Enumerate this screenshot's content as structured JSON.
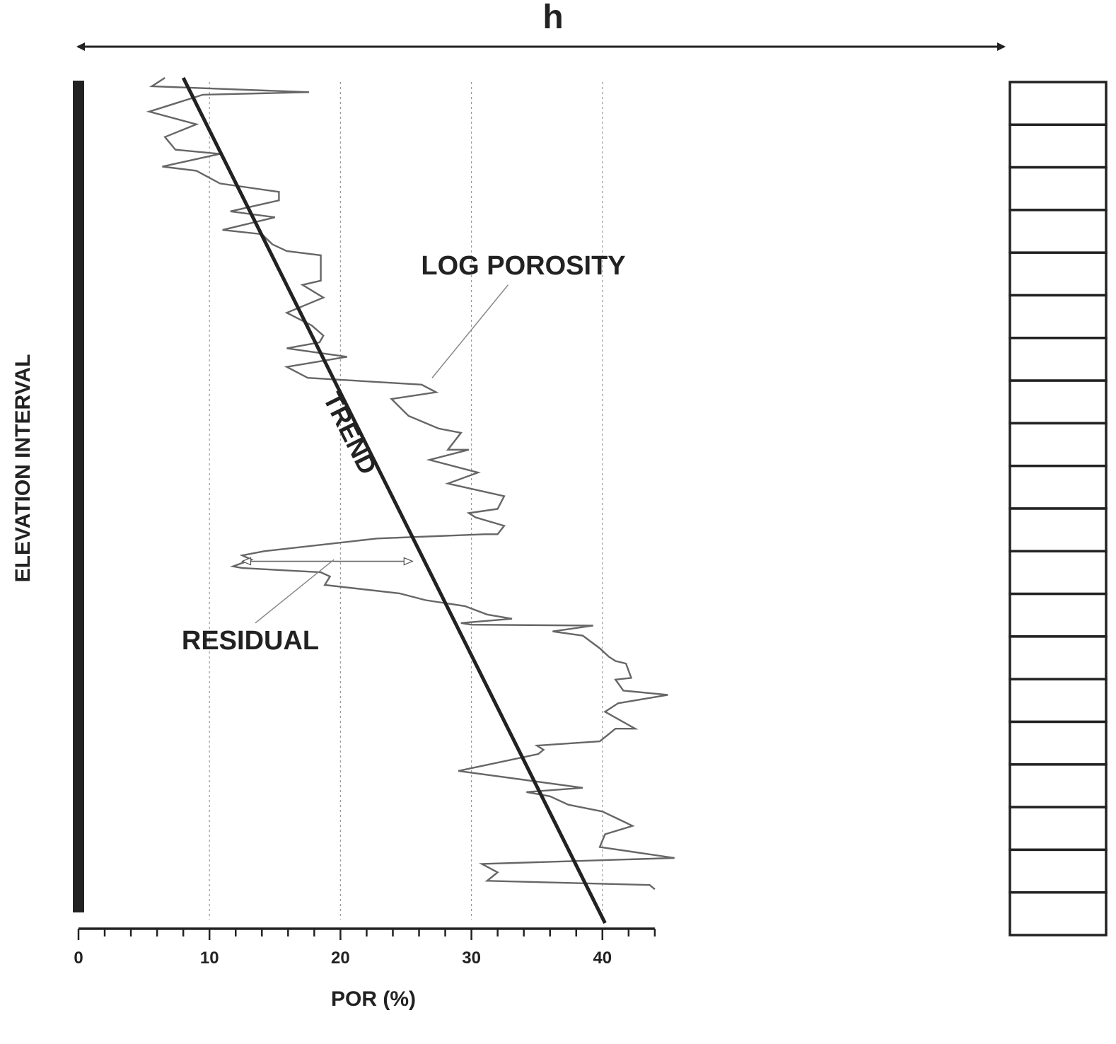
{
  "header_label": "h",
  "chart_data": {
    "type": "line",
    "xlabel": "POR (%)",
    "ylabel": "ELEVATION INTERVAL",
    "xlim": [
      0,
      44
    ],
    "xticks": [
      0,
      10,
      20,
      30,
      40
    ],
    "x_tick_labels": [
      "0",
      "10",
      "20",
      "30",
      "40"
    ],
    "grid_x": [
      10,
      20,
      30,
      40
    ],
    "grid": true,
    "series": [
      {
        "name": "LOG POROSITY",
        "points": [
          [
            6.6,
            0.0
          ],
          [
            5.6,
            0.01
          ],
          [
            17.6,
            0.017
          ],
          [
            9.5,
            0.02
          ],
          [
            5.4,
            0.04
          ],
          [
            9.0,
            0.055
          ],
          [
            6.6,
            0.07
          ],
          [
            7.4,
            0.085
          ],
          [
            10.8,
            0.09
          ],
          [
            6.4,
            0.105
          ],
          [
            9.0,
            0.11
          ],
          [
            10.8,
            0.125
          ],
          [
            15.3,
            0.135
          ],
          [
            15.3,
            0.145
          ],
          [
            11.6,
            0.158
          ],
          [
            15.0,
            0.165
          ],
          [
            11.0,
            0.18
          ],
          [
            14.0,
            0.185
          ],
          [
            14.8,
            0.197
          ],
          [
            15.9,
            0.205
          ],
          [
            18.5,
            0.21
          ],
          [
            18.5,
            0.24
          ],
          [
            17.1,
            0.245
          ],
          [
            18.7,
            0.26
          ],
          [
            15.9,
            0.278
          ],
          [
            17.8,
            0.293
          ],
          [
            18.7,
            0.305
          ],
          [
            18.4,
            0.313
          ],
          [
            15.9,
            0.32
          ],
          [
            20.5,
            0.33
          ],
          [
            15.9,
            0.342
          ],
          [
            17.5,
            0.355
          ],
          [
            26.2,
            0.363
          ],
          [
            27.3,
            0.372
          ],
          [
            23.9,
            0.38
          ],
          [
            25.2,
            0.4
          ],
          [
            27.5,
            0.415
          ],
          [
            29.2,
            0.42
          ],
          [
            28.2,
            0.44
          ],
          [
            29.8,
            0.44
          ],
          [
            26.8,
            0.452
          ],
          [
            30.5,
            0.467
          ],
          [
            28.2,
            0.48
          ],
          [
            32.5,
            0.495
          ],
          [
            32.0,
            0.51
          ],
          [
            29.8,
            0.515
          ],
          [
            30.3,
            0.52
          ],
          [
            32.5,
            0.53
          ],
          [
            32.0,
            0.54
          ],
          [
            31.0,
            0.54
          ],
          [
            22.8,
            0.545
          ],
          [
            14.2,
            0.56
          ],
          [
            12.5,
            0.565
          ],
          [
            13.2,
            0.57
          ],
          [
            11.8,
            0.578
          ],
          [
            12.5,
            0.58
          ],
          [
            18.5,
            0.585
          ],
          [
            19.2,
            0.59
          ],
          [
            18.8,
            0.6
          ],
          [
            24.5,
            0.61
          ],
          [
            26.5,
            0.618
          ],
          [
            29.5,
            0.625
          ],
          [
            31.2,
            0.635
          ],
          [
            33.1,
            0.64
          ],
          [
            29.2,
            0.645
          ],
          [
            30.0,
            0.647
          ],
          [
            39.3,
            0.648
          ],
          [
            36.2,
            0.655
          ],
          [
            38.5,
            0.66
          ],
          [
            39.8,
            0.675
          ],
          [
            40.5,
            0.685
          ],
          [
            41.0,
            0.69
          ],
          [
            41.8,
            0.693
          ],
          [
            42.2,
            0.71
          ],
          [
            41.0,
            0.712
          ],
          [
            41.6,
            0.725
          ],
          [
            45.0,
            0.73
          ],
          [
            41.2,
            0.74
          ],
          [
            40.2,
            0.75
          ],
          [
            42.5,
            0.77
          ],
          [
            41.0,
            0.77
          ],
          [
            39.8,
            0.785
          ],
          [
            35.0,
            0.79
          ],
          [
            35.5,
            0.795
          ],
          [
            35.1,
            0.8
          ],
          [
            29.0,
            0.82
          ],
          [
            38.5,
            0.84
          ],
          [
            34.2,
            0.845
          ],
          [
            36.0,
            0.85
          ],
          [
            37.4,
            0.86
          ],
          [
            40.0,
            0.868
          ],
          [
            42.3,
            0.885
          ],
          [
            40.2,
            0.895
          ],
          [
            39.8,
            0.91
          ],
          [
            45.5,
            0.923
          ],
          [
            30.8,
            0.93
          ],
          [
            32.0,
            0.94
          ],
          [
            31.2,
            0.95
          ],
          [
            43.6,
            0.955
          ],
          [
            44.0,
            0.96
          ]
        ]
      },
      {
        "name": "TREND",
        "points": [
          [
            8.0,
            0.0
          ],
          [
            40.2,
            1.0
          ]
        ]
      }
    ],
    "annotations": [
      {
        "text": "LOG POROSITY",
        "leader_from": [
          32.8,
          0.245
        ],
        "leader_to": [
          27.0,
          0.355
        ]
      },
      {
        "text": "TREND",
        "along_series": "TREND"
      },
      {
        "text": "RESIDUAL",
        "leader_from": [
          13.5,
          0.645
        ],
        "leader_to": [
          19.5,
          0.57
        ],
        "arrow_from": [
          12.5,
          0.572
        ],
        "arrow_to": [
          25.5,
          0.572
        ]
      }
    ],
    "elevation_interval_count": 20
  }
}
